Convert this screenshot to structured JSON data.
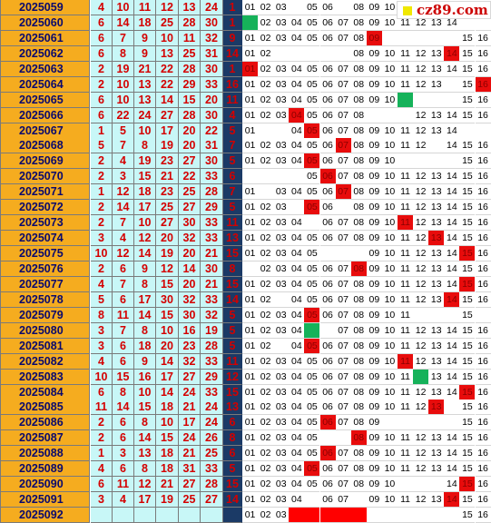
{
  "rows": [
    {
      "issue": "2025059",
      "nums": [
        "4",
        "10",
        "11",
        "12",
        "13",
        "24"
      ],
      "blue": "1",
      "m": [
        "01",
        "02",
        "03",
        "",
        "05",
        "06",
        "",
        "08",
        "09",
        "10",
        "11",
        "",
        "",
        "",
        "",
        ""
      ],
      "hits": [],
      "green": []
    },
    {
      "issue": "2025060",
      "nums": [
        "6",
        "14",
        "18",
        "25",
        "28",
        "30"
      ],
      "blue": "1",
      "m": [
        "",
        "02",
        "03",
        "04",
        "05",
        "06",
        "07",
        "08",
        "09",
        "10",
        "11",
        "12",
        "13",
        "14",
        "",
        ""
      ],
      "hits": [],
      "green": [
        1
      ]
    },
    {
      "issue": "2025061",
      "nums": [
        "6",
        "7",
        "9",
        "10",
        "11",
        "32"
      ],
      "blue": "9",
      "m": [
        "01",
        "02",
        "03",
        "04",
        "05",
        "06",
        "07",
        "08",
        "09",
        "",
        "",
        "",
        "",
        "",
        "15",
        "16"
      ],
      "hits": [
        9
      ],
      "green": []
    },
    {
      "issue": "2025062",
      "nums": [
        "6",
        "8",
        "9",
        "13",
        "25",
        "31"
      ],
      "blue": "14",
      "m": [
        "01",
        "02",
        "",
        "",
        "",
        "",
        "",
        "08",
        "09",
        "10",
        "11",
        "12",
        "13",
        "14",
        "15",
        "16"
      ],
      "hits": [
        14
      ],
      "green": []
    },
    {
      "issue": "2025063",
      "nums": [
        "2",
        "19",
        "21",
        "22",
        "28",
        "30"
      ],
      "blue": "1",
      "m": [
        "01",
        "02",
        "03",
        "04",
        "05",
        "06",
        "07",
        "08",
        "09",
        "10",
        "11",
        "12",
        "13",
        "14",
        "15",
        "16"
      ],
      "hits": [
        1
      ],
      "green": []
    },
    {
      "issue": "2025064",
      "nums": [
        "2",
        "10",
        "13",
        "22",
        "29",
        "33"
      ],
      "blue": "16",
      "m": [
        "01",
        "02",
        "03",
        "04",
        "05",
        "06",
        "07",
        "08",
        "09",
        "10",
        "11",
        "12",
        "13",
        "",
        "15",
        "16"
      ],
      "hits": [
        16
      ],
      "green": []
    },
    {
      "issue": "2025065",
      "nums": [
        "6",
        "10",
        "13",
        "14",
        "15",
        "20"
      ],
      "blue": "11",
      "m": [
        "01",
        "02",
        "03",
        "04",
        "05",
        "06",
        "07",
        "08",
        "09",
        "10",
        "",
        "",
        "",
        "",
        "15",
        "16"
      ],
      "hits": [],
      "green": [
        11
      ]
    },
    {
      "issue": "2025066",
      "nums": [
        "6",
        "22",
        "24",
        "27",
        "28",
        "30"
      ],
      "blue": "4",
      "m": [
        "01",
        "02",
        "03",
        "04",
        "05",
        "06",
        "07",
        "08",
        "",
        "",
        "",
        "12",
        "13",
        "14",
        "15",
        "16"
      ],
      "hits": [
        4
      ],
      "green": []
    },
    {
      "issue": "2025067",
      "nums": [
        "1",
        "5",
        "10",
        "17",
        "20",
        "22"
      ],
      "blue": "5",
      "m": [
        "01",
        "",
        "",
        "04",
        "05",
        "06",
        "07",
        "08",
        "09",
        "10",
        "11",
        "12",
        "13",
        "14",
        "",
        ""
      ],
      "hits": [
        5
      ],
      "green": []
    },
    {
      "issue": "2025068",
      "nums": [
        "5",
        "7",
        "8",
        "19",
        "20",
        "31"
      ],
      "blue": "7",
      "m": [
        "01",
        "02",
        "03",
        "04",
        "05",
        "06",
        "07",
        "08",
        "09",
        "10",
        "11",
        "12",
        "",
        "14",
        "15",
        "16"
      ],
      "hits": [
        7
      ],
      "green": []
    },
    {
      "issue": "2025069",
      "nums": [
        "2",
        "4",
        "19",
        "23",
        "27",
        "30"
      ],
      "blue": "5",
      "m": [
        "01",
        "02",
        "03",
        "04",
        "05",
        "06",
        "07",
        "08",
        "09",
        "10",
        "",
        "",
        "",
        "",
        "15",
        "16"
      ],
      "hits": [
        5
      ],
      "green": []
    },
    {
      "issue": "2025070",
      "nums": [
        "2",
        "3",
        "15",
        "21",
        "22",
        "33"
      ],
      "blue": "6",
      "m": [
        "",
        "",
        "",
        "",
        "05",
        "06",
        "07",
        "08",
        "09",
        "10",
        "11",
        "12",
        "13",
        "14",
        "15",
        "16"
      ],
      "hits": [
        6
      ],
      "green": []
    },
    {
      "issue": "2025071",
      "nums": [
        "1",
        "12",
        "18",
        "23",
        "25",
        "28"
      ],
      "blue": "7",
      "m": [
        "01",
        "",
        "03",
        "04",
        "05",
        "06",
        "07",
        "08",
        "09",
        "10",
        "11",
        "12",
        "13",
        "14",
        "15",
        "16"
      ],
      "hits": [
        7
      ],
      "green": []
    },
    {
      "issue": "2025072",
      "nums": [
        "2",
        "14",
        "17",
        "25",
        "27",
        "29"
      ],
      "blue": "5",
      "m": [
        "01",
        "02",
        "03",
        "",
        "05",
        "06",
        "",
        "08",
        "09",
        "10",
        "11",
        "12",
        "13",
        "14",
        "15",
        "16"
      ],
      "hits": [
        5
      ],
      "green": []
    },
    {
      "issue": "2025073",
      "nums": [
        "2",
        "7",
        "10",
        "27",
        "30",
        "33"
      ],
      "blue": "11",
      "m": [
        "01",
        "02",
        "03",
        "04",
        "",
        "06",
        "07",
        "08",
        "09",
        "10",
        "11",
        "12",
        "13",
        "14",
        "15",
        "16"
      ],
      "hits": [
        11
      ],
      "green": []
    },
    {
      "issue": "2025074",
      "nums": [
        "3",
        "4",
        "12",
        "20",
        "32",
        "33"
      ],
      "blue": "13",
      "m": [
        "01",
        "02",
        "03",
        "04",
        "05",
        "06",
        "07",
        "08",
        "09",
        "10",
        "11",
        "12",
        "13",
        "14",
        "15",
        "16"
      ],
      "hits": [
        13
      ],
      "green": []
    },
    {
      "issue": "2025075",
      "nums": [
        "10",
        "12",
        "14",
        "19",
        "20",
        "21"
      ],
      "blue": "15",
      "m": [
        "01",
        "02",
        "03",
        "04",
        "05",
        "",
        "",
        "",
        "09",
        "10",
        "11",
        "12",
        "13",
        "14",
        "15",
        "16"
      ],
      "hits": [
        15
      ],
      "green": []
    },
    {
      "issue": "2025076",
      "nums": [
        "2",
        "6",
        "9",
        "12",
        "14",
        "30"
      ],
      "blue": "8",
      "m": [
        "",
        "02",
        "03",
        "04",
        "05",
        "06",
        "07",
        "08",
        "09",
        "10",
        "11",
        "12",
        "13",
        "14",
        "15",
        "16"
      ],
      "hits": [
        8
      ],
      "green": []
    },
    {
      "issue": "2025077",
      "nums": [
        "4",
        "7",
        "8",
        "15",
        "20",
        "21"
      ],
      "blue": "15",
      "m": [
        "01",
        "02",
        "03",
        "04",
        "05",
        "06",
        "07",
        "08",
        "09",
        "10",
        "11",
        "12",
        "13",
        "14",
        "15",
        "16"
      ],
      "hits": [
        15
      ],
      "green": []
    },
    {
      "issue": "2025078",
      "nums": [
        "5",
        "6",
        "17",
        "30",
        "32",
        "33"
      ],
      "blue": "14",
      "m": [
        "01",
        "02",
        "",
        "04",
        "05",
        "06",
        "07",
        "08",
        "09",
        "10",
        "11",
        "12",
        "13",
        "14",
        "15",
        "16"
      ],
      "hits": [
        14
      ],
      "green": []
    },
    {
      "issue": "2025079",
      "nums": [
        "8",
        "11",
        "14",
        "15",
        "30",
        "32"
      ],
      "blue": "5",
      "m": [
        "01",
        "02",
        "03",
        "04",
        "05",
        "06",
        "07",
        "08",
        "09",
        "10",
        "11",
        "",
        "",
        "",
        "15",
        ""
      ],
      "hits": [
        5
      ],
      "green": []
    },
    {
      "issue": "2025080",
      "nums": [
        "3",
        "7",
        "8",
        "10",
        "16",
        "19"
      ],
      "blue": "5",
      "m": [
        "01",
        "02",
        "03",
        "04",
        "",
        "",
        "07",
        "08",
        "09",
        "10",
        "11",
        "12",
        "13",
        "14",
        "15",
        "16"
      ],
      "hits": [],
      "green": [
        5
      ]
    },
    {
      "issue": "2025081",
      "nums": [
        "3",
        "6",
        "18",
        "20",
        "23",
        "28"
      ],
      "blue": "5",
      "m": [
        "01",
        "02",
        "",
        "04",
        "05",
        "06",
        "07",
        "08",
        "09",
        "10",
        "11",
        "12",
        "13",
        "14",
        "15",
        "16"
      ],
      "hits": [
        5
      ],
      "green": []
    },
    {
      "issue": "2025082",
      "nums": [
        "4",
        "6",
        "9",
        "14",
        "32",
        "33"
      ],
      "blue": "11",
      "m": [
        "01",
        "02",
        "03",
        "04",
        "05",
        "06",
        "07",
        "08",
        "09",
        "10",
        "11",
        "12",
        "13",
        "14",
        "15",
        "16"
      ],
      "hits": [
        11
      ],
      "green": []
    },
    {
      "issue": "2025083",
      "nums": [
        "10",
        "15",
        "16",
        "17",
        "27",
        "29"
      ],
      "blue": "12",
      "m": [
        "01",
        "02",
        "03",
        "04",
        "05",
        "06",
        "07",
        "08",
        "09",
        "10",
        "11",
        "",
        "13",
        "14",
        "15",
        "16"
      ],
      "hits": [],
      "green": [
        12
      ]
    },
    {
      "issue": "2025084",
      "nums": [
        "6",
        "8",
        "10",
        "14",
        "24",
        "33"
      ],
      "blue": "15",
      "m": [
        "01",
        "02",
        "03",
        "04",
        "05",
        "06",
        "07",
        "08",
        "09",
        "10",
        "11",
        "12",
        "13",
        "14",
        "15",
        "16"
      ],
      "hits": [
        15
      ],
      "green": []
    },
    {
      "issue": "2025085",
      "nums": [
        "11",
        "14",
        "15",
        "18",
        "21",
        "24"
      ],
      "blue": "13",
      "m": [
        "01",
        "02",
        "03",
        "04",
        "05",
        "06",
        "07",
        "08",
        "09",
        "10",
        "11",
        "12",
        "13",
        "",
        "15",
        "16"
      ],
      "hits": [
        13
      ],
      "green": []
    },
    {
      "issue": "2025086",
      "nums": [
        "2",
        "6",
        "8",
        "10",
        "17",
        "24"
      ],
      "blue": "6",
      "m": [
        "01",
        "02",
        "03",
        "04",
        "05",
        "06",
        "07",
        "08",
        "09",
        "",
        "",
        "",
        "",
        "",
        "15",
        "16"
      ],
      "hits": [
        6
      ],
      "green": []
    },
    {
      "issue": "2025087",
      "nums": [
        "2",
        "6",
        "14",
        "15",
        "24",
        "26"
      ],
      "blue": "8",
      "m": [
        "01",
        "02",
        "03",
        "04",
        "05",
        "",
        "",
        "08",
        "09",
        "10",
        "11",
        "12",
        "13",
        "14",
        "15",
        "16"
      ],
      "hits": [
        8
      ],
      "green": []
    },
    {
      "issue": "2025088",
      "nums": [
        "1",
        "3",
        "13",
        "18",
        "21",
        "25"
      ],
      "blue": "6",
      "m": [
        "01",
        "02",
        "03",
        "04",
        "05",
        "06",
        "07",
        "08",
        "09",
        "10",
        "11",
        "12",
        "13",
        "14",
        "15",
        "16"
      ],
      "hits": [
        6
      ],
      "green": []
    },
    {
      "issue": "2025089",
      "nums": [
        "4",
        "6",
        "8",
        "18",
        "31",
        "33"
      ],
      "blue": "5",
      "m": [
        "01",
        "02",
        "03",
        "04",
        "05",
        "06",
        "07",
        "08",
        "09",
        "10",
        "11",
        "12",
        "13",
        "14",
        "15",
        "16"
      ],
      "hits": [
        5
      ],
      "green": []
    },
    {
      "issue": "2025090",
      "nums": [
        "6",
        "11",
        "12",
        "21",
        "27",
        "28"
      ],
      "blue": "15",
      "m": [
        "01",
        "02",
        "03",
        "04",
        "05",
        "06",
        "07",
        "08",
        "09",
        "10",
        "",
        "",
        "",
        "14",
        "15",
        "16"
      ],
      "hits": [
        15
      ],
      "green": []
    },
    {
      "issue": "2025091",
      "nums": [
        "3",
        "4",
        "17",
        "19",
        "25",
        "27"
      ],
      "blue": "14",
      "m": [
        "01",
        "02",
        "03",
        "04",
        "",
        "06",
        "07",
        "",
        "09",
        "10",
        "11",
        "12",
        "13",
        "14",
        "15",
        "16"
      ],
      "hits": [
        14
      ],
      "green": []
    },
    {
      "issue": "2025092",
      "nums": [
        "",
        "",
        "",
        "",
        "",
        ""
      ],
      "blue": "",
      "m": [
        "01",
        "02",
        "03",
        "",
        "",
        "",
        "",
        "",
        "",
        "",
        "",
        "",
        "",
        "",
        "15",
        "16"
      ],
      "hits": [],
      "green": [],
      "pred": [
        4,
        5,
        6,
        7,
        8
      ]
    }
  ],
  "logo": {
    "text": "cz89.com",
    "sq_color": "#f0e800"
  }
}
